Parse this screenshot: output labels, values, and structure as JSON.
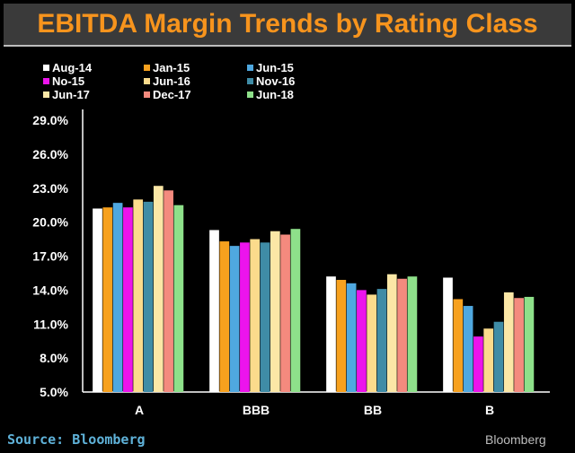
{
  "source_label": "Source: Bloomberg",
  "brand": "Bloomberg",
  "chart_data": {
    "type": "bar",
    "title": "EBITDA Margin Trends by Rating Class",
    "xlabel": "",
    "ylabel": "",
    "categories": [
      "A",
      "BBB",
      "BB",
      "B"
    ],
    "y_ticks": [
      "5.0%",
      "8.0%",
      "11.0%",
      "14.0%",
      "17.0%",
      "20.0%",
      "23.0%",
      "26.0%",
      "29.0%"
    ],
    "ylim": [
      5,
      29
    ],
    "grid": false,
    "legend_position": "top-left",
    "series": [
      {
        "name": "Aug-14",
        "color": "#ffffff",
        "values": [
          21.2,
          19.3,
          15.2,
          15.1
        ]
      },
      {
        "name": "Jan-15",
        "color": "#f7a11e",
        "values": [
          21.3,
          18.3,
          14.9,
          13.2
        ]
      },
      {
        "name": "Jun-15",
        "color": "#4fa8e0",
        "values": [
          21.7,
          17.9,
          14.6,
          12.6
        ]
      },
      {
        "name": "No-15",
        "color": "#ec14ec",
        "values": [
          21.3,
          18.2,
          14.0,
          9.9
        ]
      },
      {
        "name": "Jun-16",
        "color": "#fbdb8c",
        "values": [
          22.0,
          18.5,
          13.6,
          10.6
        ]
      },
      {
        "name": "Nov-16",
        "color": "#3f8ca6",
        "values": [
          21.8,
          18.2,
          14.1,
          11.2
        ]
      },
      {
        "name": "Jun-17",
        "color": "#fbe7a6",
        "values": [
          23.2,
          19.2,
          15.4,
          13.8
        ]
      },
      {
        "name": "Dec-17",
        "color": "#f48a7e",
        "values": [
          22.8,
          18.9,
          15.0,
          13.3
        ]
      },
      {
        "name": "Jun-18",
        "color": "#8ee08a",
        "values": [
          21.5,
          19.4,
          15.2,
          13.4
        ]
      }
    ]
  }
}
